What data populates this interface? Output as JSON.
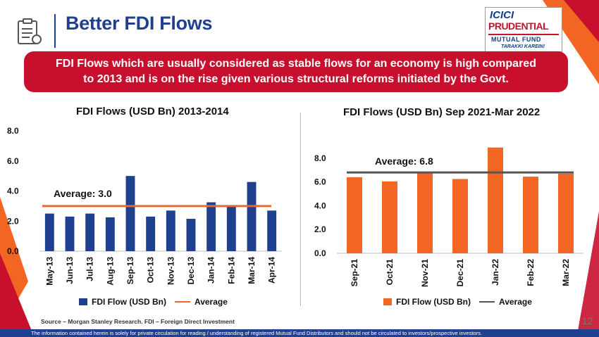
{
  "header": {
    "title": "Better FDI Flows",
    "banner_line1": "FDI Flows which are usually considered as stable flows for an economy is high compared",
    "banner_line2": "to 2013 and is on the rise given various structural reforms initiated by the Govt."
  },
  "logo": {
    "line1": "ICICI",
    "line2": "PRUDENTIAL",
    "line3": "MUTUAL FUND",
    "tagline": "TARAKKI KAREIN!"
  },
  "colors": {
    "primary_blue": "#1f3f8f",
    "banner_red": "#c8102e",
    "orange": "#f26522",
    "bar_navy": "#1f3f8f",
    "average_dark": "#555555"
  },
  "chart_data": [
    {
      "type": "bar",
      "title": "FDI Flows (USD Bn) 2013-2014",
      "categories": [
        "May-13",
        "Jun-13",
        "Jul-13",
        "Aug-13",
        "Sep-13",
        "Oct-13",
        "Nov-13",
        "Dec-13",
        "Jan-14",
        "Feb-14",
        "Mar-14",
        "Apr-14"
      ],
      "series": [
        {
          "name": "FDI Flow (USD Bn)",
          "values": [
            2.5,
            2.3,
            2.5,
            2.25,
            5.0,
            2.3,
            2.7,
            2.15,
            3.25,
            3.05,
            4.6,
            2.7
          ],
          "color": "#1f3f8f"
        }
      ],
      "average": {
        "name": "Average",
        "value": 3.0,
        "label": "Average: 3.0",
        "color": "#f26522"
      },
      "y_ticks": [
        "0.0",
        "2.0",
        "4.0",
        "6.0",
        "8.0"
      ],
      "ylim": [
        0,
        8
      ],
      "legend": "bottom"
    },
    {
      "type": "bar",
      "title": "FDI Flows (USD Bn) Sep 2021-Mar 2022",
      "categories": [
        "Sep-21",
        "Oct-21",
        "Nov-21",
        "Dec-21",
        "Jan-22",
        "Feb-22",
        "Mar-22"
      ],
      "series": [
        {
          "name": "FDI Flow (USD Bn)",
          "values": [
            6.4,
            6.05,
            6.75,
            6.25,
            8.9,
            6.45,
            6.7
          ],
          "color": "#f26522"
        }
      ],
      "average": {
        "name": "Average",
        "value": 6.8,
        "label": "Average: 6.8",
        "color": "#555555"
      },
      "y_ticks": [
        "0.0",
        "2.0",
        "4.0",
        "6.0",
        "8.0"
      ],
      "ylim": [
        0,
        9
      ],
      "legend": "bottom"
    }
  ],
  "source": "Source – Morgan Stanley Research. FDI – Foreign Direct Investment",
  "page_number": "12",
  "footer": "The information contained herein is solely for private circulation for reading / understanding of registered Mutual Fund Distributors and should not be circulated to investors/prospective investors."
}
